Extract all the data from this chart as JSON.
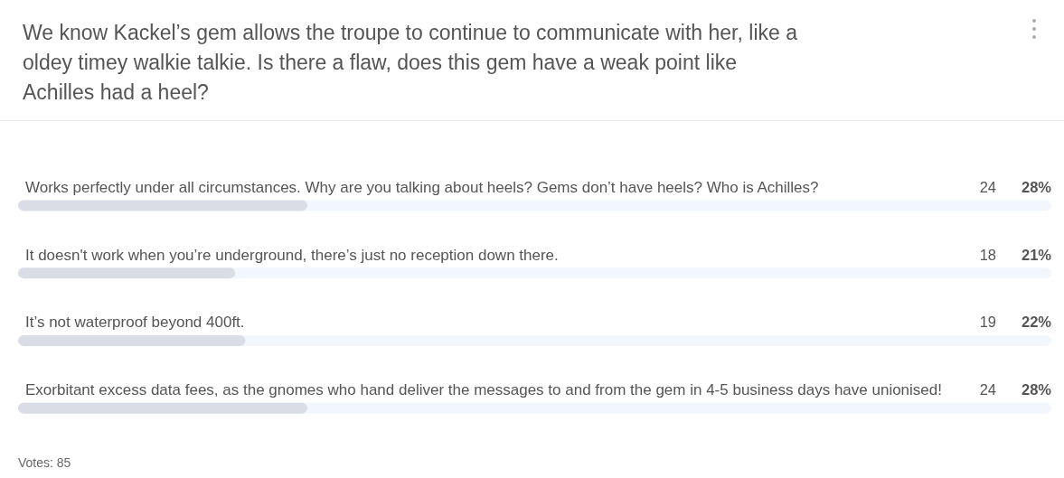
{
  "chart_data": {
    "type": "bar",
    "orientation": "horizontal",
    "title": "We know Kackel’s gem allows the troupe to continue to communicate with her, like a oldey timey walkie talkie. Is there a flaw, does this gem have a weak point like Achilles had a heel?",
    "categories": [
      "Works perfectly under all circumstances. Why are you talking about heels? Gems don’t have heels? Who is Achilles?",
      "It doesn't work when you’re underground, there’s just no reception down there.",
      "It’s not waterproof beyond 400ft.",
      "Exorbitant excess data fees, as the gnomes who hand deliver the messages to and from the gem in 4-5 business days have unionised!"
    ],
    "values": [
      28,
      21,
      22,
      28
    ],
    "value_labels": [
      "28%",
      "21%",
      "22%",
      "28%"
    ],
    "color": "#dadde6",
    "xlim": [
      0,
      100
    ],
    "tick_labels": "y",
    "annotations": [
      "24",
      "18",
      "19",
      "24",
      "Votes: 85"
    ]
  }
}
